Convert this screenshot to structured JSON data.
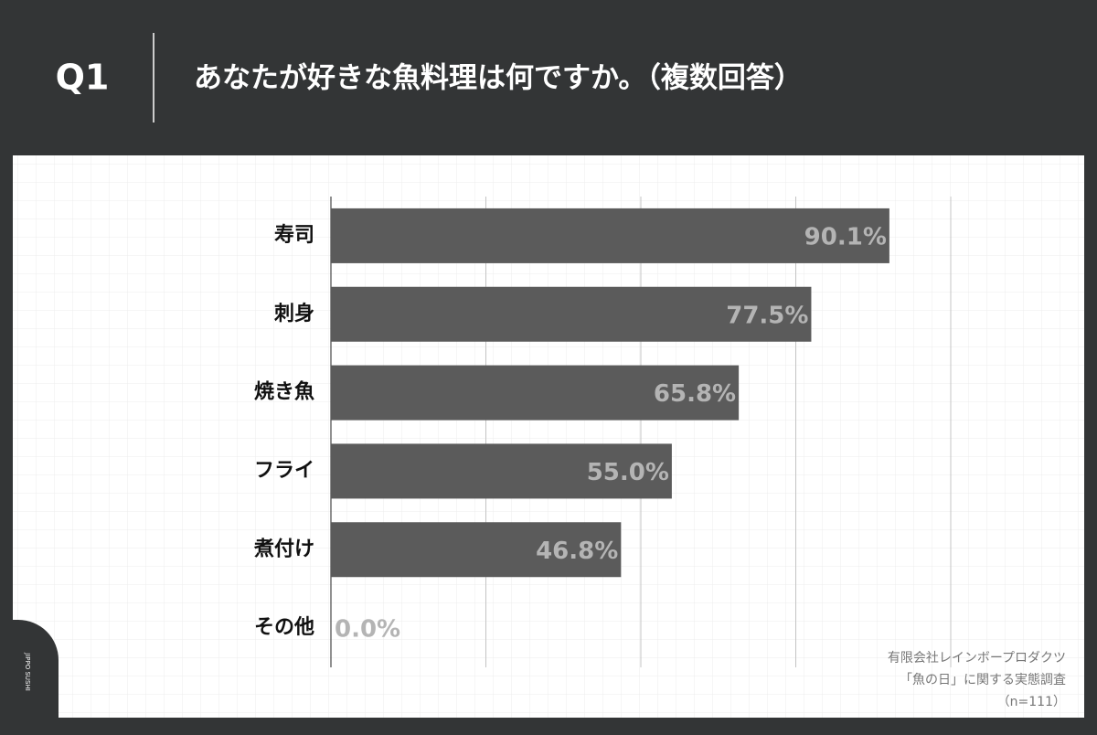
{
  "header": {
    "number": "Q1",
    "question": "あなたが好きな魚料理は何ですか。（複数回答）"
  },
  "chart_data": {
    "type": "bar",
    "orientation": "horizontal",
    "categories": [
      "寿司",
      "刺身",
      "焼き魚",
      "フライ",
      "煮付け",
      "その他"
    ],
    "values": [
      90.1,
      77.5,
      65.8,
      55.0,
      46.8,
      0.0
    ],
    "value_labels": [
      "90.1%",
      "77.5%",
      "65.8%",
      "55.0%",
      "46.8%",
      "0.0%"
    ],
    "color": "#5b5b5b",
    "label_color": "#b4b4b4",
    "xlim": [
      0,
      100
    ],
    "xticks": [
      0,
      25,
      50,
      75,
      100
    ],
    "grid": true
  },
  "source": [
    "有限会社レインボープロダクツ",
    "「魚の日」に関する実態調査",
    "（n=111）"
  ],
  "logo": "JIPPO SUSHI"
}
